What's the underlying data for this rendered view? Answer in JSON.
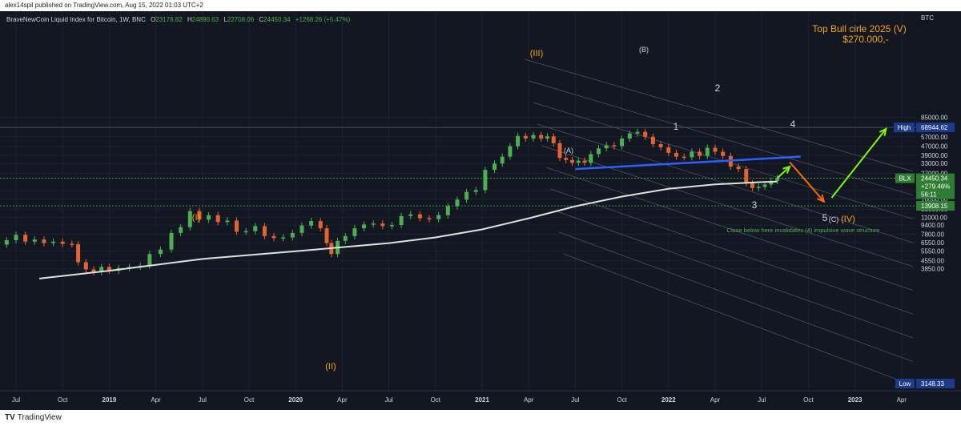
{
  "header": {
    "published": "alex14spil published on TradingView.com, Aug 15, 2022 01:03 UTC+2"
  },
  "legend": {
    "symbol": "BraveNewCoin Liquid Index for Bitcoin, 1W, BNC",
    "open_label": "O",
    "open": "23178.82",
    "high_label": "H",
    "high": "24890.63",
    "low_label": "L",
    "low": "22708.06",
    "close_label": "C",
    "close": "24450.34",
    "change": "+1268.26 (+5.47%)"
  },
  "price_axis": {
    "currency": "BTC",
    "ticks": [
      {
        "label": "85000.00",
        "value": 85000
      },
      {
        "label": "69000.00",
        "value": 69000
      },
      {
        "label": "57000.00",
        "value": 57000
      },
      {
        "label": "47000.00",
        "value": 47000
      },
      {
        "label": "39000.00",
        "value": 39000
      },
      {
        "label": "33000.00",
        "value": 33000
      },
      {
        "label": "27000.00",
        "value": 27000
      },
      {
        "label": "19000.00",
        "value": 19000
      },
      {
        "label": "16000.00",
        "value": 16000
      },
      {
        "label": "13000.00",
        "value": 13000
      },
      {
        "label": "11000.00",
        "value": 11000
      },
      {
        "label": "9400.00",
        "value": 9400
      },
      {
        "label": "7800.00",
        "value": 7800
      },
      {
        "label": "6550.00",
        "value": 6550
      },
      {
        "label": "5550.00",
        "value": 5550
      },
      {
        "label": "4550.00",
        "value": 4550
      },
      {
        "label": "3850.00",
        "value": 3850
      }
    ],
    "high_tag": {
      "label": "High",
      "value_text": "68944.62",
      "value": 68944.62
    },
    "low_tag": {
      "label": "Low",
      "value_text": "3148.33",
      "value": 3148.33
    },
    "current_tag": {
      "label": "BLX",
      "value_text": "24450.34",
      "change": "+279.46%",
      "countdown": "56:11",
      "value": 24450.34
    },
    "level_tag": {
      "value_text": "13908.15",
      "value": 13908.15
    }
  },
  "time_axis": {
    "ticks": [
      {
        "label": "Jul",
        "t": 0
      },
      {
        "label": "Oct",
        "t": 3
      },
      {
        "label": "2019",
        "t": 6,
        "bold": true
      },
      {
        "label": "Apr",
        "t": 9
      },
      {
        "label": "Jul",
        "t": 12
      },
      {
        "label": "Oct",
        "t": 15
      },
      {
        "label": "2020",
        "t": 18,
        "bold": true
      },
      {
        "label": "Apr",
        "t": 21
      },
      {
        "label": "Jul",
        "t": 24
      },
      {
        "label": "Oct",
        "t": 27
      },
      {
        "label": "2021",
        "t": 30,
        "bold": true
      },
      {
        "label": "Apr",
        "t": 33
      },
      {
        "label": "Jul",
        "t": 36
      },
      {
        "label": "Oct",
        "t": 39
      },
      {
        "label": "2022",
        "t": 42,
        "bold": true
      },
      {
        "label": "Apr",
        "t": 45
      },
      {
        "label": "Jul",
        "t": 48
      },
      {
        "label": "Oct",
        "t": 51
      },
      {
        "label": "2023",
        "t": 54,
        "bold": true
      },
      {
        "label": "Apr",
        "t": 57
      }
    ]
  },
  "annotations": {
    "target_title": "Top Bull cirle 2025 (V)",
    "target_price": "$270.000,-",
    "invalidation": "Close below here invalidates (4) impulsive wave structure",
    "wave_I": "(I)",
    "wave_II": "(II)",
    "wave_III": "(III)",
    "wave_IV": "(IV)",
    "wave_A": "(A)",
    "wave_B": "(B)",
    "wave_C": "(C)",
    "wave_1": "1",
    "wave_2": "2",
    "wave_3": "3",
    "wave_4": "4",
    "wave_5": "5"
  },
  "colors": {
    "background": "#131722",
    "up": "#4caf50",
    "down": "#e2652f",
    "ma": "#e0e0e0",
    "trendline": "#2962ff",
    "projection_up": "#7cfc00",
    "projection_down": "#ff6d00",
    "wave_orange": "#f5a31a",
    "text": "#d1d4dc"
  },
  "footer": {
    "brand": "TradingView"
  },
  "chart_data": {
    "type": "candlestick",
    "title": "BraveNewCoin Liquid Index for Bitcoin, 1W, BNC",
    "y_scale": "log",
    "ylim": [
      3148,
      100000
    ],
    "x_unit": "months since Jul 2018",
    "candles": [
      {
        "t": -0.6,
        "o": 6300,
        "c": 6900
      },
      {
        "t": 0.0,
        "o": 6900,
        "c": 7700
      },
      {
        "t": 0.6,
        "o": 7700,
        "c": 6700
      },
      {
        "t": 1.2,
        "o": 6700,
        "c": 7000
      },
      {
        "t": 1.8,
        "o": 7000,
        "c": 6500
      },
      {
        "t": 2.4,
        "o": 6500,
        "c": 6700
      },
      {
        "t": 3.0,
        "o": 6700,
        "c": 6400
      },
      {
        "t": 3.6,
        "o": 6400,
        "c": 6350
      },
      {
        "t": 4.0,
        "o": 6350,
        "c": 4400
      },
      {
        "t": 4.5,
        "o": 4400,
        "c": 3800
      },
      {
        "t": 5.0,
        "o": 3800,
        "c": 3600
      },
      {
        "t": 5.5,
        "o": 3600,
        "c": 4000
      },
      {
        "t": 6.0,
        "o": 4000,
        "c": 3700
      },
      {
        "t": 6.6,
        "o": 3700,
        "c": 3900
      },
      {
        "t": 7.3,
        "o": 3900,
        "c": 4000
      },
      {
        "t": 8.0,
        "o": 4000,
        "c": 4100
      },
      {
        "t": 8.6,
        "o": 4100,
        "c": 5200
      },
      {
        "t": 9.3,
        "o": 5200,
        "c": 5700
      },
      {
        "t": 10.0,
        "o": 5700,
        "c": 8000
      },
      {
        "t": 10.6,
        "o": 8000,
        "c": 9000
      },
      {
        "t": 11.2,
        "o": 9000,
        "c": 12500
      },
      {
        "t": 11.8,
        "o": 12500,
        "c": 10500
      },
      {
        "t": 12.4,
        "o": 10500,
        "c": 11500
      },
      {
        "t": 13.0,
        "o": 11500,
        "c": 10000
      },
      {
        "t": 13.6,
        "o": 10000,
        "c": 10300
      },
      {
        "t": 14.2,
        "o": 10300,
        "c": 8200
      },
      {
        "t": 14.8,
        "o": 8200,
        "c": 8300
      },
      {
        "t": 15.4,
        "o": 8300,
        "c": 9200
      },
      {
        "t": 16.0,
        "o": 9200,
        "c": 7500
      },
      {
        "t": 16.6,
        "o": 7500,
        "c": 7200
      },
      {
        "t": 17.2,
        "o": 7200,
        "c": 7300
      },
      {
        "t": 17.8,
        "o": 7300,
        "c": 8000
      },
      {
        "t": 18.4,
        "o": 8000,
        "c": 9300
      },
      {
        "t": 19.0,
        "o": 9300,
        "c": 10200
      },
      {
        "t": 19.6,
        "o": 10200,
        "c": 8800
      },
      {
        "t": 20.0,
        "o": 8800,
        "c": 6500
      },
      {
        "t": 20.3,
        "o": 6500,
        "c": 5200
      },
      {
        "t": 20.7,
        "o": 5200,
        "c": 6800
      },
      {
        "t": 21.2,
        "o": 6800,
        "c": 7500
      },
      {
        "t": 21.8,
        "o": 7500,
        "c": 8800
      },
      {
        "t": 22.4,
        "o": 8800,
        "c": 9500
      },
      {
        "t": 23.0,
        "o": 9500,
        "c": 9700
      },
      {
        "t": 23.6,
        "o": 9700,
        "c": 9200
      },
      {
        "t": 24.2,
        "o": 9200,
        "c": 9400
      },
      {
        "t": 24.8,
        "o": 9400,
        "c": 11300
      },
      {
        "t": 25.4,
        "o": 11300,
        "c": 11700
      },
      {
        "t": 26.0,
        "o": 11700,
        "c": 10800
      },
      {
        "t": 26.6,
        "o": 10800,
        "c": 10600
      },
      {
        "t": 27.2,
        "o": 10600,
        "c": 11500
      },
      {
        "t": 27.8,
        "o": 11500,
        "c": 13800
      },
      {
        "t": 28.4,
        "o": 13800,
        "c": 15800
      },
      {
        "t": 29.0,
        "o": 15800,
        "c": 18500
      },
      {
        "t": 29.6,
        "o": 18500,
        "c": 19200
      },
      {
        "t": 30.2,
        "o": 19200,
        "c": 29000
      },
      {
        "t": 30.8,
        "o": 29000,
        "c": 33000
      },
      {
        "t": 31.3,
        "o": 33000,
        "c": 38000
      },
      {
        "t": 31.8,
        "o": 38000,
        "c": 47000
      },
      {
        "t": 32.3,
        "o": 47000,
        "c": 58000
      },
      {
        "t": 32.8,
        "o": 58000,
        "c": 55000
      },
      {
        "t": 33.3,
        "o": 55000,
        "c": 59000
      },
      {
        "t": 33.8,
        "o": 59000,
        "c": 55000
      },
      {
        "t": 34.2,
        "o": 55000,
        "c": 57500
      },
      {
        "t": 34.6,
        "o": 57500,
        "c": 50000
      },
      {
        "t": 35.0,
        "o": 50000,
        "c": 37000
      },
      {
        "t": 35.4,
        "o": 37000,
        "c": 35500
      },
      {
        "t": 35.8,
        "o": 35500,
        "c": 33500
      },
      {
        "t": 36.2,
        "o": 33500,
        "c": 35000
      },
      {
        "t": 36.6,
        "o": 35000,
        "c": 33500
      },
      {
        "t": 37.0,
        "o": 33500,
        "c": 40000
      },
      {
        "t": 37.5,
        "o": 40000,
        "c": 45000
      },
      {
        "t": 38.0,
        "o": 45000,
        "c": 48000
      },
      {
        "t": 38.5,
        "o": 48000,
        "c": 47000
      },
      {
        "t": 39.0,
        "o": 47000,
        "c": 55000
      },
      {
        "t": 39.5,
        "o": 55000,
        "c": 61000
      },
      {
        "t": 40.0,
        "o": 61000,
        "c": 63000
      },
      {
        "t": 40.5,
        "o": 63000,
        "c": 57000
      },
      {
        "t": 41.0,
        "o": 57000,
        "c": 49000
      },
      {
        "t": 41.5,
        "o": 49000,
        "c": 46000
      },
      {
        "t": 42.0,
        "o": 46000,
        "c": 41000
      },
      {
        "t": 42.5,
        "o": 41000,
        "c": 38000
      },
      {
        "t": 43.0,
        "o": 38000,
        "c": 37500
      },
      {
        "t": 43.5,
        "o": 37500,
        "c": 42000
      },
      {
        "t": 44.0,
        "o": 42000,
        "c": 38500
      },
      {
        "t": 44.5,
        "o": 38500,
        "c": 45500
      },
      {
        "t": 45.0,
        "o": 45500,
        "c": 42000
      },
      {
        "t": 45.5,
        "o": 42000,
        "c": 38500
      },
      {
        "t": 46.0,
        "o": 38500,
        "c": 31000
      },
      {
        "t": 46.5,
        "o": 31000,
        "c": 29500
      },
      {
        "t": 47.0,
        "o": 29500,
        "c": 22000
      },
      {
        "t": 47.4,
        "o": 22000,
        "c": 20000
      },
      {
        "t": 47.8,
        "o": 20000,
        "c": 20500
      },
      {
        "t": 48.2,
        "o": 20500,
        "c": 21500
      },
      {
        "t": 48.6,
        "o": 21500,
        "c": 23200
      },
      {
        "t": 49.0,
        "o": 23200,
        "c": 24450
      }
    ],
    "moving_average": [
      {
        "t": 1.5,
        "v": 3150
      },
      {
        "t": 6,
        "v": 3700
      },
      {
        "t": 12,
        "v": 4700
      },
      {
        "t": 18,
        "v": 5500
      },
      {
        "t": 24,
        "v": 6500
      },
      {
        "t": 27,
        "v": 7300
      },
      {
        "t": 30,
        "v": 8600
      },
      {
        "t": 33,
        "v": 10800
      },
      {
        "t": 36,
        "v": 13800
      },
      {
        "t": 39,
        "v": 16800
      },
      {
        "t": 42,
        "v": 19700
      },
      {
        "t": 45,
        "v": 21600
      },
      {
        "t": 48,
        "v": 22600
      },
      {
        "t": 49,
        "v": 22800
      }
    ],
    "trendline": [
      {
        "t": 36,
        "v": 29500
      },
      {
        "t": 50.5,
        "v": 38000
      }
    ],
    "projection_up_short": [
      {
        "t": 49,
        "v": 24500
      },
      {
        "t": 49.8,
        "v": 31000
      }
    ],
    "projection_down": [
      {
        "t": 49.8,
        "v": 34000
      },
      {
        "t": 52.0,
        "v": 15200
      }
    ],
    "projection_up_long": [
      {
        "t": 52.5,
        "v": 16400
      },
      {
        "t": 56.0,
        "v": 67000
      }
    ],
    "horizontal_levels": [
      {
        "value": 68944.62
      },
      {
        "value": 24450.34
      },
      {
        "value": 13908.15
      }
    ]
  }
}
